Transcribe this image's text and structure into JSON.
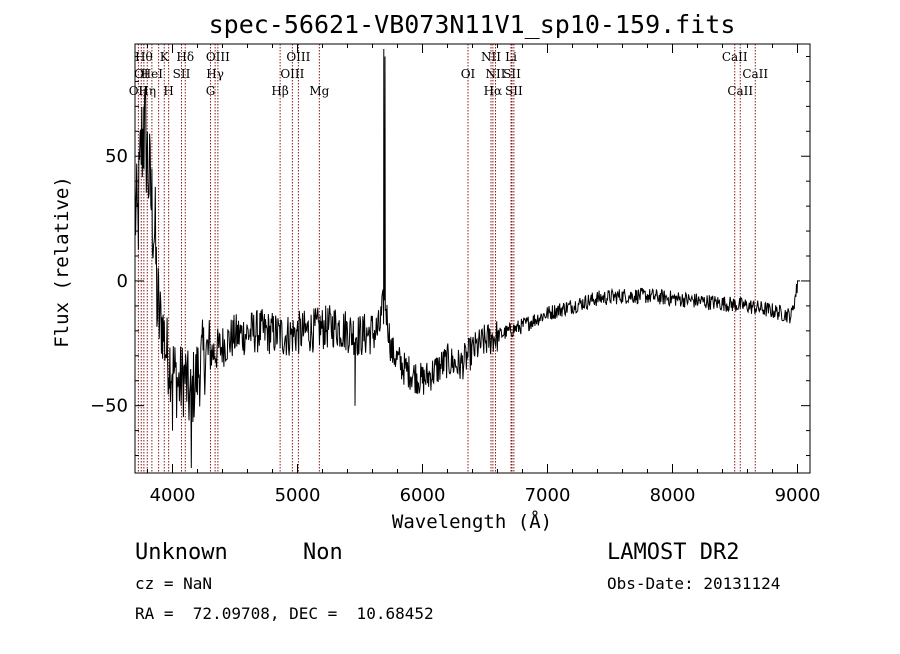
{
  "chart_data": {
    "type": "line",
    "title": "spec-56621-VB073N11V1_sp10-159.fits",
    "xlabel": "Wavelength (Å)",
    "ylabel": "Flux (relative)",
    "xlim": [
      3700,
      9100
    ],
    "ylim": [
      -77,
      95
    ],
    "x_ticks": [
      4000,
      5000,
      6000,
      7000,
      8000,
      9000
    ],
    "y_ticks": [
      -50,
      0,
      50
    ],
    "grid": false,
    "line_color": "#000000",
    "marker_color": "#8b1a1a",
    "spectrum_anchors": [
      {
        "x": 3700,
        "y": 30
      },
      {
        "x": 3720,
        "y": 20
      },
      {
        "x": 3750,
        "y": 55
      },
      {
        "x": 3780,
        "y": 60
      },
      {
        "x": 3800,
        "y": 48
      },
      {
        "x": 3830,
        "y": 32
      },
      {
        "x": 3860,
        "y": 18
      },
      {
        "x": 3880,
        "y": -12
      },
      {
        "x": 3920,
        "y": -18
      },
      {
        "x": 3950,
        "y": -28
      },
      {
        "x": 4000,
        "y": -35
      },
      {
        "x": 4050,
        "y": -42
      },
      {
        "x": 4100,
        "y": -38
      },
      {
        "x": 4140,
        "y": -48
      },
      {
        "x": 4180,
        "y": -40
      },
      {
        "x": 4250,
        "y": -30
      },
      {
        "x": 4350,
        "y": -28
      },
      {
        "x": 4500,
        "y": -22
      },
      {
        "x": 4700,
        "y": -20
      },
      {
        "x": 4900,
        "y": -22
      },
      {
        "x": 5100,
        "y": -20
      },
      {
        "x": 5300,
        "y": -18
      },
      {
        "x": 5500,
        "y": -22
      },
      {
        "x": 5650,
        "y": -20
      },
      {
        "x": 5700,
        "y": -8
      },
      {
        "x": 5750,
        "y": -28
      },
      {
        "x": 5850,
        "y": -35
      },
      {
        "x": 6000,
        "y": -40
      },
      {
        "x": 6100,
        "y": -36
      },
      {
        "x": 6200,
        "y": -32
      },
      {
        "x": 6300,
        "y": -34
      },
      {
        "x": 6400,
        "y": -28
      },
      {
        "x": 6500,
        "y": -24
      },
      {
        "x": 6600,
        "y": -22
      },
      {
        "x": 6800,
        "y": -18
      },
      {
        "x": 7000,
        "y": -13
      },
      {
        "x": 7200,
        "y": -10
      },
      {
        "x": 7400,
        "y": -7
      },
      {
        "x": 7600,
        "y": -6
      },
      {
        "x": 7800,
        "y": -6
      },
      {
        "x": 8000,
        "y": -7
      },
      {
        "x": 8200,
        "y": -8
      },
      {
        "x": 8400,
        "y": -9
      },
      {
        "x": 8600,
        "y": -10
      },
      {
        "x": 8800,
        "y": -12
      },
      {
        "x": 8950,
        "y": -14
      },
      {
        "x": 9000,
        "y": -2
      }
    ],
    "spectrum_features": [
      {
        "x": 5690,
        "y": 93
      },
      {
        "x": 5700,
        "y": 90
      },
      {
        "x": 5460,
        "y": -50
      },
      {
        "x": 3770,
        "y": 70
      },
      {
        "x": 4150,
        "y": -75
      },
      {
        "x": 4000,
        "y": -60
      }
    ],
    "line_markers": [
      {
        "wavelength": 3727,
        "label": "OII",
        "row": 3
      },
      {
        "wavelength": 3750,
        "label": "OI",
        "row": 2
      },
      {
        "wavelength": 3771,
        "label": "Hθ",
        "row": 1
      },
      {
        "wavelength": 3798,
        "label": "Hη",
        "row": 3
      },
      {
        "wavelength": 3835,
        "label": "HeI",
        "row": 2
      },
      {
        "wavelength": 3889,
        "label": "",
        "row": 0
      },
      {
        "wavelength": 3934,
        "label": "K",
        "row": 1
      },
      {
        "wavelength": 3969,
        "label": "H",
        "row": 3
      },
      {
        "wavelength": 4072,
        "label": "SII",
        "row": 2
      },
      {
        "wavelength": 4102,
        "label": "Hδ",
        "row": 1
      },
      {
        "wavelength": 4304,
        "label": "G",
        "row": 3
      },
      {
        "wavelength": 4341,
        "label": "Hγ",
        "row": 2
      },
      {
        "wavelength": 4363,
        "label": "OIII",
        "row": 1
      },
      {
        "wavelength": 4861,
        "label": "Hβ",
        "row": 3
      },
      {
        "wavelength": 4959,
        "label": "OIII",
        "row": 2
      },
      {
        "wavelength": 5007,
        "label": "OIII",
        "row": 1
      },
      {
        "wavelength": 5175,
        "label": "Mg",
        "row": 3
      },
      {
        "wavelength": 6364,
        "label": "OI",
        "row": 2
      },
      {
        "wavelength": 6548,
        "label": "NII",
        "row": 1
      },
      {
        "wavelength": 6563,
        "label": "Hα",
        "row": 3
      },
      {
        "wavelength": 6584,
        "label": "NII",
        "row": 2
      },
      {
        "wavelength": 6708,
        "label": "Li",
        "row": 1
      },
      {
        "wavelength": 6716,
        "label": "SII",
        "row": 2
      },
      {
        "wavelength": 6731,
        "label": "SII",
        "row": 3
      },
      {
        "wavelength": 8498,
        "label": "CaII",
        "row": 1
      },
      {
        "wavelength": 8542,
        "label": "CaII",
        "row": 3
      },
      {
        "wavelength": 8662,
        "label": "CaII",
        "row": 2
      }
    ]
  },
  "info": {
    "class": "Unknown",
    "subclass": "Non",
    "survey": "LAMOST DR2",
    "redshift": "cz = NaN",
    "obs_date": "Obs-Date: 20131124",
    "coords": "RA =  72.09708, DEC =  10.68452"
  }
}
